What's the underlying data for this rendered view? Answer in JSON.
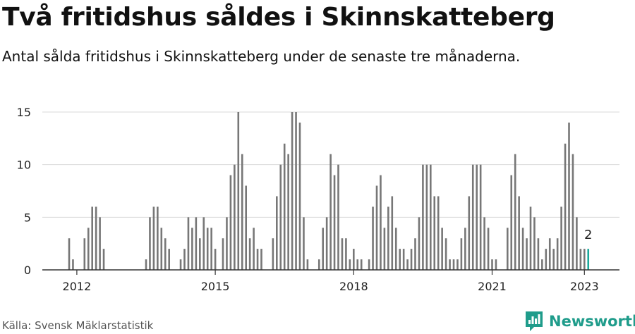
{
  "title": "Två fritidshus såldes i Skinnskatteberg",
  "subtitle": "Antal sålda fritidshus i Skinnskatteberg under de senaste tre månaderna.",
  "source": "Källa: Svensk Mäklarstatistik",
  "brand": {
    "name": "Newsworthy",
    "icon": "newsworthy-logo-icon"
  },
  "colors": {
    "bar": "#777777",
    "highlight": "#1aa89b",
    "grid": "#d9d9d9",
    "axis": "#333333"
  },
  "chart_data": {
    "type": "bar",
    "title": "Två fritidshus såldes i Skinnskatteberg",
    "subtitle": "Antal sålda fritidshus i Skinnskatteberg under de senaste tre månaderna.",
    "xlabel": "",
    "ylabel": "",
    "ylim": [
      0,
      15
    ],
    "yticks": [
      0,
      5,
      10,
      15
    ],
    "xticks": [
      "2012",
      "2015",
      "2018",
      "2021",
      "2023"
    ],
    "x_unit": "month",
    "x_range": [
      "2011-11",
      "2023-03"
    ],
    "grid": true,
    "legend": "none",
    "start_month": "2011-11",
    "values": [
      3,
      1,
      0,
      0,
      3,
      4,
      6,
      6,
      5,
      2,
      0,
      0,
      0,
      0,
      0,
      0,
      0,
      0,
      0,
      0,
      1,
      5,
      6,
      6,
      4,
      3,
      2,
      0,
      0,
      1,
      2,
      5,
      4,
      5,
      3,
      5,
      4,
      4,
      2,
      0,
      3,
      5,
      9,
      10,
      15,
      11,
      8,
      3,
      4,
      2,
      2,
      0,
      0,
      3,
      7,
      10,
      12,
      11,
      15,
      15,
      14,
      5,
      1,
      0,
      0,
      1,
      4,
      5,
      11,
      9,
      10,
      3,
      3,
      1,
      2,
      1,
      1,
      0,
      1,
      6,
      8,
      9,
      4,
      6,
      7,
      4,
      2,
      2,
      1,
      2,
      3,
      5,
      10,
      10,
      10,
      7,
      7,
      4,
      3,
      1,
      1,
      1,
      3,
      4,
      7,
      10,
      10,
      10,
      5,
      4,
      1,
      1,
      0,
      0,
      4,
      9,
      11,
      7,
      4,
      3,
      6,
      5,
      3,
      1,
      2,
      3,
      2,
      3,
      6,
      12,
      14,
      11,
      5,
      2,
      2,
      2
    ],
    "highlight": {
      "month": "2023-02",
      "value": 2,
      "label": "2"
    }
  }
}
